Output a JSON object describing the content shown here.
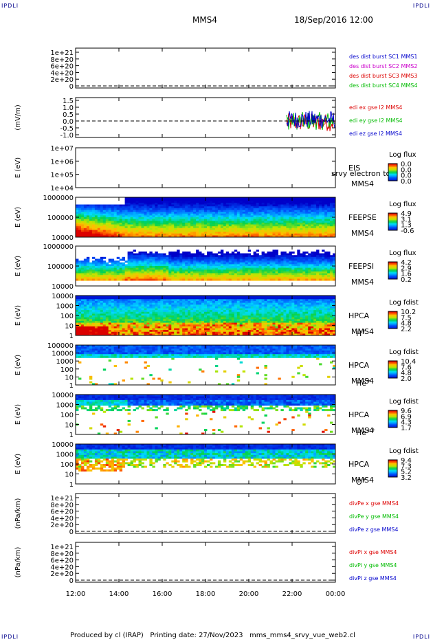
{
  "page": {
    "corner_left_top": "IPDLI",
    "corner_right_top": "IPDLI",
    "corner_left_bottom": "IPDLI",
    "corner_right_bottom": "IPDLI",
    "title": "MMS4",
    "date": "18/Sep/2016 12:00",
    "footer": "Produced by cl (IRAP)   Printing date: 27/Nov/2023   mms_mms4_srvy_vue_web2.cl"
  },
  "chart_data": {
    "type": "multi-panel time series / spectrogram",
    "x_ticks": [
      "12:00",
      "14:00",
      "16:00",
      "18:00",
      "20:00",
      "22:00",
      "00:00"
    ],
    "panels": [
      {
        "id": "p1",
        "kind": "line",
        "yticks": [
          "1e+21",
          "8e+20",
          "6e+20",
          "4e+20",
          "2e+20",
          "0"
        ],
        "ylabel": "",
        "legend": [
          {
            "text": "des dist burst SC1 MMS1",
            "color": "#0000cc"
          },
          {
            "text": "des dist burst SC2 MMS2",
            "color": "#cc00cc"
          },
          {
            "text": "des dist burst SC3 MMS3",
            "color": "#dd0000"
          },
          {
            "text": "des dist burst SC4 MMS4",
            "color": "#00bb00"
          }
        ]
      },
      {
        "id": "p2",
        "kind": "efield",
        "yticks": [
          "1.5",
          "1.0",
          "0.5",
          "0.0",
          "-0.5",
          "-1.0"
        ],
        "ylabel": "(mV/m)",
        "legend": [
          {
            "text": "edi ex gse l2 MMS4",
            "color": "#dd0000"
          },
          {
            "text": "edi ey gse l2 MMS4",
            "color": "#00bb00"
          },
          {
            "text": "edi ez gse l2 MMS4",
            "color": "#0000cc"
          }
        ]
      },
      {
        "id": "p3",
        "kind": "spec_empty",
        "yticks": [
          "1e+07",
          "1e+06",
          "1e+05",
          "1e+04"
        ],
        "ylabel": "E (eV)",
        "labels": [
          "EIS",
          "MMS4"
        ],
        "overlay": "srvy electron to",
        "cbar_title": "Log flux",
        "cbar_ticks": [
          "0.0",
          "0.0",
          "0.0",
          "0.0"
        ]
      },
      {
        "id": "p4",
        "kind": "spec",
        "variant": "feepse",
        "yticks": [
          "1000000",
          "100000",
          "10000"
        ],
        "ylabel": "E (eV)",
        "labels": [
          "FEEPSE",
          "MMS4"
        ],
        "cbar_title": "Log flux",
        "cbar_ticks": [
          "4.9",
          "3.1",
          "1.3",
          "-0.6"
        ]
      },
      {
        "id": "p5",
        "kind": "spec",
        "variant": "feepsi",
        "yticks": [
          "1000000",
          "100000",
          "10000"
        ],
        "ylabel": "E (eV)",
        "labels": [
          "FEEPSI",
          "MMS4"
        ],
        "cbar_title": "Log flux",
        "cbar_ticks": [
          "4.2",
          "2.9",
          "1.6",
          "0.2"
        ]
      },
      {
        "id": "p6",
        "kind": "spec",
        "variant": "hplus",
        "yticks": [
          "10000",
          "1000",
          "100",
          "10",
          "1"
        ],
        "ylabel": "E (eV)",
        "labels": [
          "HPCA",
          "MMS4"
        ],
        "species": "H",
        "charge": "+",
        "cbar_title": "Log fdist",
        "cbar_ticks": [
          "10.2",
          "7.5",
          "4.8",
          "2.2"
        ]
      },
      {
        "id": "p7",
        "kind": "spec",
        "variant": "heplus",
        "yticks": [
          "100000",
          "10000",
          "1000",
          "100",
          "10",
          "1"
        ],
        "ylabel": "E (eV)",
        "labels": [
          "HPCA",
          "MMS4"
        ],
        "species": "He",
        "charge": "+",
        "cbar_title": "Log fdist",
        "cbar_ticks": [
          "10.4",
          "7.6",
          "4.8",
          "2.0"
        ]
      },
      {
        "id": "p8",
        "kind": "spec",
        "variant": "heplusplus",
        "yticks": [
          "10000",
          "1000",
          "100",
          "10",
          "1"
        ],
        "ylabel": "E (eV)",
        "labels": [
          "HPCA",
          "MMS4"
        ],
        "species": "He",
        "charge": "++",
        "cbar_title": "Log fdist",
        "cbar_ticks": [
          "9.6",
          "6.9",
          "4.3",
          "1.7"
        ]
      },
      {
        "id": "p9",
        "kind": "spec",
        "variant": "oplus",
        "yticks": [
          "10000",
          "1000",
          "100",
          "10",
          "1"
        ],
        "ylabel": "E (eV)",
        "labels": [
          "HPCA",
          "MMS4"
        ],
        "species": "O",
        "charge": "+",
        "cbar_title": "Log fdist",
        "cbar_ticks": [
          "9.4",
          "7.3",
          "5.2",
          "3.2"
        ]
      },
      {
        "id": "p10",
        "kind": "line",
        "yticks": [
          "1e+21",
          "8e+20",
          "6e+20",
          "4e+20",
          "2e+20",
          "0"
        ],
        "ylabel": "(nPa/km)",
        "legend": [
          {
            "text": "divPe x gse MMS4",
            "color": "#dd0000"
          },
          {
            "text": "divPe y gse MMS4",
            "color": "#00bb00"
          },
          {
            "text": "divPe z gse MMS4",
            "color": "#0000cc"
          }
        ]
      },
      {
        "id": "p11",
        "kind": "line",
        "yticks": [
          "1e+21",
          "8e+20",
          "6e+20",
          "4e+20",
          "2e+20",
          "0"
        ],
        "ylabel": "(nPa/km)",
        "legend": [
          {
            "text": "divPi x gse MMS4",
            "color": "#dd0000"
          },
          {
            "text": "divPi y gse MMS4",
            "color": "#00bb00"
          },
          {
            "text": "divPi z gse MMS4",
            "color": "#0000cc"
          }
        ]
      }
    ]
  }
}
